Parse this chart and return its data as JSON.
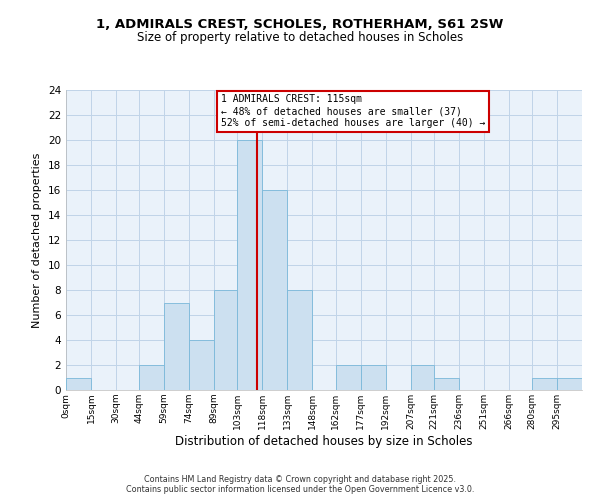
{
  "title": "1, ADMIRALS CREST, SCHOLES, ROTHERHAM, S61 2SW",
  "subtitle": "Size of property relative to detached houses in Scholes",
  "xlabel": "Distribution of detached houses by size in Scholes",
  "ylabel": "Number of detached properties",
  "bin_labels": [
    "0sqm",
    "15sqm",
    "30sqm",
    "44sqm",
    "59sqm",
    "74sqm",
    "89sqm",
    "103sqm",
    "118sqm",
    "133sqm",
    "148sqm",
    "162sqm",
    "177sqm",
    "192sqm",
    "207sqm",
    "221sqm",
    "236sqm",
    "251sqm",
    "266sqm",
    "280sqm",
    "295sqm"
  ],
  "bin_edges": [
    0,
    15,
    30,
    44,
    59,
    74,
    89,
    103,
    118,
    133,
    148,
    162,
    177,
    192,
    207,
    221,
    236,
    251,
    266,
    280,
    295,
    310
  ],
  "counts": [
    1,
    0,
    0,
    2,
    7,
    4,
    8,
    20,
    16,
    8,
    0,
    2,
    2,
    0,
    2,
    1,
    0,
    0,
    0,
    1,
    1
  ],
  "bar_color": "#cce0f0",
  "bar_edge_color": "#7ab8d9",
  "grid_color": "#c0d4e8",
  "bg_color": "#eaf2fa",
  "vline_x": 115,
  "vline_color": "#cc0000",
  "annotation_title": "1 ADMIRALS CREST: 115sqm",
  "annotation_line1": "← 48% of detached houses are smaller (37)",
  "annotation_line2": "52% of semi-detached houses are larger (40) →",
  "annotation_box_color": "#ffffff",
  "annotation_box_edge": "#cc0000",
  "ylim": [
    0,
    24
  ],
  "yticks": [
    0,
    2,
    4,
    6,
    8,
    10,
    12,
    14,
    16,
    18,
    20,
    22,
    24
  ],
  "footer1": "Contains HM Land Registry data © Crown copyright and database right 2025.",
  "footer2": "Contains public sector information licensed under the Open Government Licence v3.0."
}
